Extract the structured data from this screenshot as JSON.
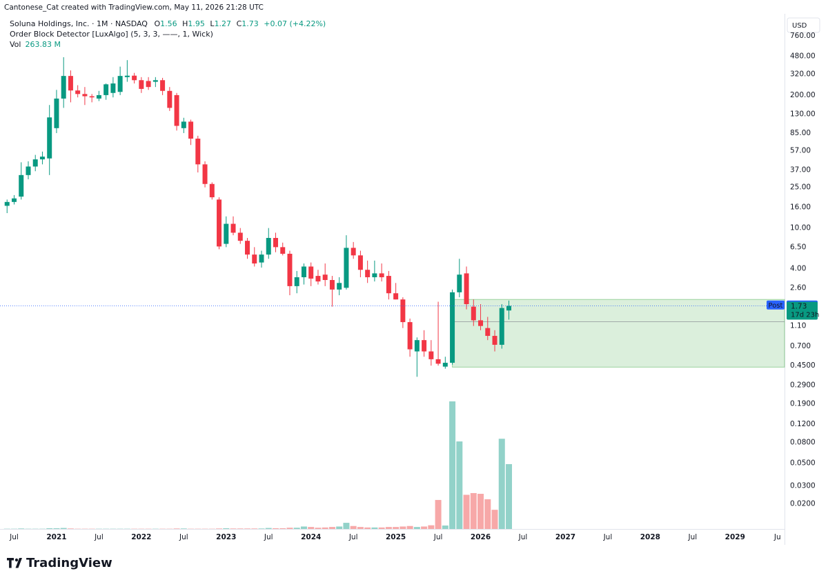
{
  "header": {
    "attribution": "Cantonese_Cat created with TradingView.com, May 11, 2026 21:28 UTC",
    "symbol": "Soluna Holdings, Inc. · 1M · NASDAQ",
    "o_key": "O",
    "o": "1.56",
    "h_key": "H",
    "h": "1.95",
    "l_key": "L",
    "l": "1.27",
    "c_key": "C",
    "c": "1.73",
    "change": "+0.07 (+4.22%)",
    "indicator": "Order Block Detector [LuxAlgo] (5, 3, 3, ——, 1, Wick)",
    "vol_key": "Vol",
    "vol": "263.83 M",
    "currency": "USD",
    "post_key": "Post",
    "post_price": "1.75",
    "last_price": "1.73",
    "countdown": "17d 23h",
    "brand": "TradingView"
  },
  "chart_data": {
    "type": "candlestick",
    "log_scale": true,
    "grid": false,
    "up_color": "#089981",
    "down_color": "#f23645",
    "vol_up_color": "#92d2c9",
    "vol_down_color": "#f7a8a8",
    "x": [
      "2020-06",
      "2020-07",
      "2020-08",
      "2020-09",
      "2020-10",
      "2020-11",
      "2020-12",
      "2021-01",
      "2021-02",
      "2021-03",
      "2021-04",
      "2021-05",
      "2021-06",
      "2021-07",
      "2021-08",
      "2021-09",
      "2021-10",
      "2021-11",
      "2021-12",
      "2022-01",
      "2022-02",
      "2022-03",
      "2022-04",
      "2022-05",
      "2022-06",
      "2022-07",
      "2022-08",
      "2022-09",
      "2022-10",
      "2022-11",
      "2022-12",
      "2023-01",
      "2023-02",
      "2023-03",
      "2023-04",
      "2023-05",
      "2023-06",
      "2023-07",
      "2023-08",
      "2023-09",
      "2023-10",
      "2023-11",
      "2023-12",
      "2024-01",
      "2024-02",
      "2024-03",
      "2024-04",
      "2024-05",
      "2024-06",
      "2024-07",
      "2024-08",
      "2024-09",
      "2024-10",
      "2024-11",
      "2024-12",
      "2025-01",
      "2025-02",
      "2025-03",
      "2025-04",
      "2025-05",
      "2025-06",
      "2025-07",
      "2025-08",
      "2025-09",
      "2025-10",
      "2025-11",
      "2025-12",
      "2026-01",
      "2026-02",
      "2026-03",
      "2026-04",
      "2026-05"
    ],
    "open": [
      16.5,
      18,
      20.3,
      33,
      40,
      47,
      48,
      95,
      185,
      308,
      222,
      205,
      195,
      185,
      200,
      210,
      215,
      300,
      310,
      280,
      275,
      270,
      280,
      220,
      200,
      95,
      110,
      75,
      42,
      27,
      19,
      7,
      11,
      9,
      7.5,
      5.5,
      4.6,
      5.5,
      8,
      6.5,
      5.6,
      2.7,
      3.3,
      4.2,
      3.4,
      3.5,
      3.1,
      2.5,
      2.6,
      6.4,
      5.4,
      3.9,
      3.3,
      3.6,
      3.4,
      2.3,
      2.0,
      1.2,
      0.62,
      0.8,
      0.62,
      0.52,
      0.44,
      0.48,
      2.35,
      3.6,
      1.7,
      1.25,
      1.05,
      0.88,
      0.72,
      1.56
    ],
    "high": [
      19,
      21,
      44,
      45,
      52,
      56,
      160,
      225,
      470,
      349,
      250,
      240,
      205,
      220,
      260,
      300,
      380,
      440,
      330,
      300,
      300,
      300,
      295,
      240,
      210,
      120,
      115,
      80,
      45,
      28,
      20,
      13,
      13,
      10,
      8,
      6.5,
      6,
      10,
      9,
      7.2,
      6,
      3.8,
      4.5,
      4.6,
      3.9,
      4.5,
      3.4,
      3.3,
      8.5,
      7.3,
      6.0,
      4.8,
      4.8,
      4.5,
      3.8,
      2.9,
      2.1,
      1.3,
      0.85,
      1.0,
      0.8,
      1.9,
      0.55,
      2.5,
      5.0,
      4.2,
      2.0,
      1.8,
      1.35,
      1.0,
      1.8,
      1.95
    ],
    "low": [
      14,
      17,
      19,
      30,
      36,
      42,
      33,
      85,
      150,
      170,
      190,
      160,
      170,
      175,
      180,
      190,
      200,
      270,
      260,
      210,
      225,
      240,
      200,
      140,
      90,
      85,
      65,
      35,
      25,
      19,
      6.2,
      6.5,
      8.5,
      7,
      5,
      4.2,
      4.1,
      5,
      5.8,
      5.4,
      2.2,
      2.3,
      2.8,
      2.7,
      2.8,
      2.7,
      1.7,
      2.2,
      2.5,
      5.0,
      3.3,
      2.9,
      3.0,
      3.0,
      2.0,
      2.0,
      1.05,
      0.55,
      0.35,
      0.55,
      0.45,
      0.45,
      0.42,
      0.46,
      2.1,
      1.6,
      1.1,
      1.0,
      0.8,
      0.62,
      0.66,
      1.27
    ],
    "close": [
      18,
      19.5,
      33,
      40,
      47,
      50,
      121,
      185,
      308,
      222,
      205,
      195,
      190,
      200,
      255,
      260,
      308,
      310,
      280,
      230,
      240,
      280,
      220,
      150,
      100,
      110,
      75,
      42,
      27,
      20,
      6.6,
      11,
      9,
      7.5,
      5.5,
      4.5,
      5.5,
      8,
      6.5,
      5.6,
      2.7,
      3.3,
      4.2,
      3.2,
      3.0,
      3.1,
      2.5,
      2.9,
      6.4,
      5.4,
      3.9,
      3.3,
      3.6,
      3.3,
      2.3,
      2.0,
      1.2,
      0.65,
      0.8,
      0.62,
      0.52,
      0.47,
      0.48,
      2.35,
      3.5,
      1.8,
      1.25,
      1.1,
      0.88,
      0.72,
      1.65,
      1.73
    ],
    "volume": [
      1,
      1,
      2,
      1,
      1,
      1,
      3,
      3,
      4,
      2,
      1,
      1,
      1,
      1,
      1,
      1,
      1,
      1,
      1,
      1,
      1,
      1,
      1,
      1,
      2,
      2,
      1,
      1,
      1,
      1,
      2,
      3,
      2,
      2,
      2,
      2,
      2,
      4,
      3,
      3,
      5,
      5,
      10,
      8,
      5,
      6,
      8,
      10,
      25,
      12,
      8,
      6,
      6,
      6,
      8,
      8,
      10,
      12,
      8,
      10,
      15,
      118,
      14,
      519,
      356,
      139,
      146,
      143,
      121,
      78,
      367,
      263.83
    ],
    "order_block": {
      "start": "2025-09",
      "top": 2.0,
      "mid": 1.21,
      "bottom": 0.435,
      "color": "#4caf50"
    },
    "post_value": 1.75,
    "xlim": [
      "2020-05",
      "2029-08"
    ],
    "ylim": [
      0.0117,
      1250
    ],
    "yticks": [
      {
        "value": 760,
        "label": "760.00"
      },
      {
        "value": 480,
        "label": "480.00"
      },
      {
        "value": 320,
        "label": "320.00"
      },
      {
        "value": 200,
        "label": "200.00"
      },
      {
        "value": 130,
        "label": "130.00"
      },
      {
        "value": 85,
        "label": "85.00"
      },
      {
        "value": 57,
        "label": "57.00"
      },
      {
        "value": 37,
        "label": "37.00"
      },
      {
        "value": 25,
        "label": "25.00"
      },
      {
        "value": 16,
        "label": "16.00"
      },
      {
        "value": 10,
        "label": "10.00"
      },
      {
        "value": 6.5,
        "label": "6.50"
      },
      {
        "value": 4,
        "label": "4.00"
      },
      {
        "value": 2.6,
        "label": "2.60"
      },
      {
        "value": 1.1,
        "label": "1.10"
      },
      {
        "value": 0.7,
        "label": "0.700"
      },
      {
        "value": 0.45,
        "label": "0.4500"
      },
      {
        "value": 0.29,
        "label": "0.2900"
      },
      {
        "value": 0.19,
        "label": "0.1900"
      },
      {
        "value": 0.12,
        "label": "0.1200"
      },
      {
        "value": 0.08,
        "label": "0.0800"
      },
      {
        "value": 0.05,
        "label": "0.0500"
      },
      {
        "value": 0.03,
        "label": "0.0300"
      },
      {
        "value": 0.02,
        "label": "0.0200"
      }
    ],
    "xticks": [
      {
        "value": "2020-07",
        "label": "Jul"
      },
      {
        "value": "2021-01",
        "label": "2021"
      },
      {
        "value": "2021-07",
        "label": "Jul"
      },
      {
        "value": "2022-01",
        "label": "2022"
      },
      {
        "value": "2022-07",
        "label": "Jul"
      },
      {
        "value": "2023-01",
        "label": "2023"
      },
      {
        "value": "2023-07",
        "label": "Jul"
      },
      {
        "value": "2024-01",
        "label": "2024"
      },
      {
        "value": "2024-07",
        "label": "Jul"
      },
      {
        "value": "2025-01",
        "label": "2025"
      },
      {
        "value": "2025-07",
        "label": "Jul"
      },
      {
        "value": "2026-01",
        "label": "2026"
      },
      {
        "value": "2026-07",
        "label": "Jul"
      },
      {
        "value": "2027-01",
        "label": "2027"
      },
      {
        "value": "2027-07",
        "label": "Jul"
      },
      {
        "value": "2028-01",
        "label": "2028"
      },
      {
        "value": "2028-07",
        "label": "Jul"
      },
      {
        "value": "2029-01",
        "label": "2029"
      },
      {
        "value": "2029-07",
        "label": "Ju"
      }
    ]
  }
}
